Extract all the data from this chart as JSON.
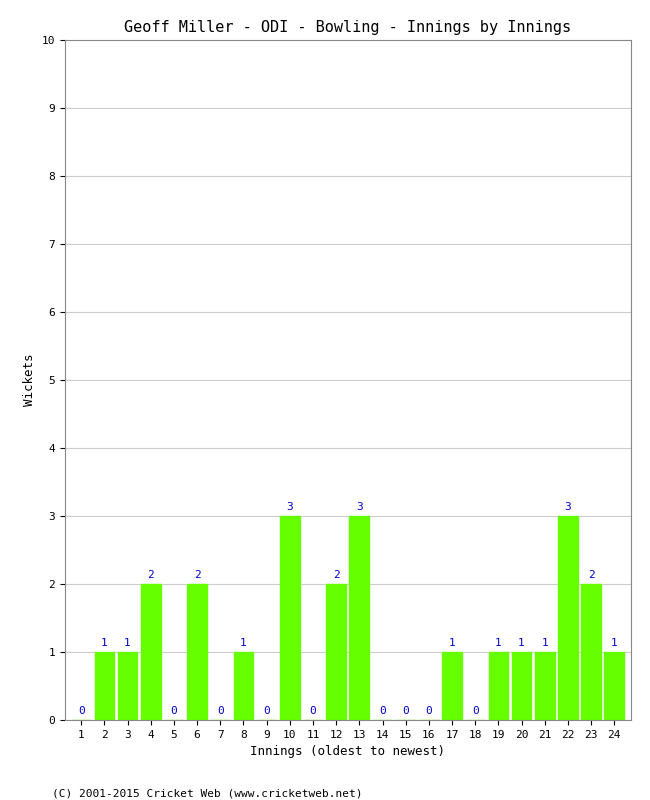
{
  "title": "Geoff Miller - ODI - Bowling - Innings by Innings",
  "xlabel": "Innings (oldest to newest)",
  "ylabel": "Wickets",
  "footnote": "(C) 2001-2015 Cricket Web (www.cricketweb.net)",
  "ylim": [
    0,
    10
  ],
  "yticks": [
    0,
    1,
    2,
    3,
    4,
    5,
    6,
    7,
    8,
    9,
    10
  ],
  "innings": [
    1,
    2,
    3,
    4,
    5,
    6,
    7,
    8,
    9,
    10,
    11,
    12,
    13,
    14,
    15,
    16,
    17,
    18,
    19,
    20,
    21,
    22,
    23,
    24
  ],
  "wickets": [
    0,
    1,
    1,
    2,
    0,
    2,
    0,
    1,
    0,
    3,
    0,
    2,
    3,
    0,
    0,
    0,
    1,
    0,
    1,
    1,
    1,
    3,
    2,
    1
  ],
  "bar_color": "#66ff00",
  "label_color": "#0000cc",
  "background_color": "#ffffff",
  "grid_color": "#cccccc",
  "title_fontsize": 11,
  "axis_label_fontsize": 9,
  "tick_fontsize": 8,
  "bar_label_fontsize": 8,
  "footnote_fontsize": 8,
  "bar_width": 0.85
}
